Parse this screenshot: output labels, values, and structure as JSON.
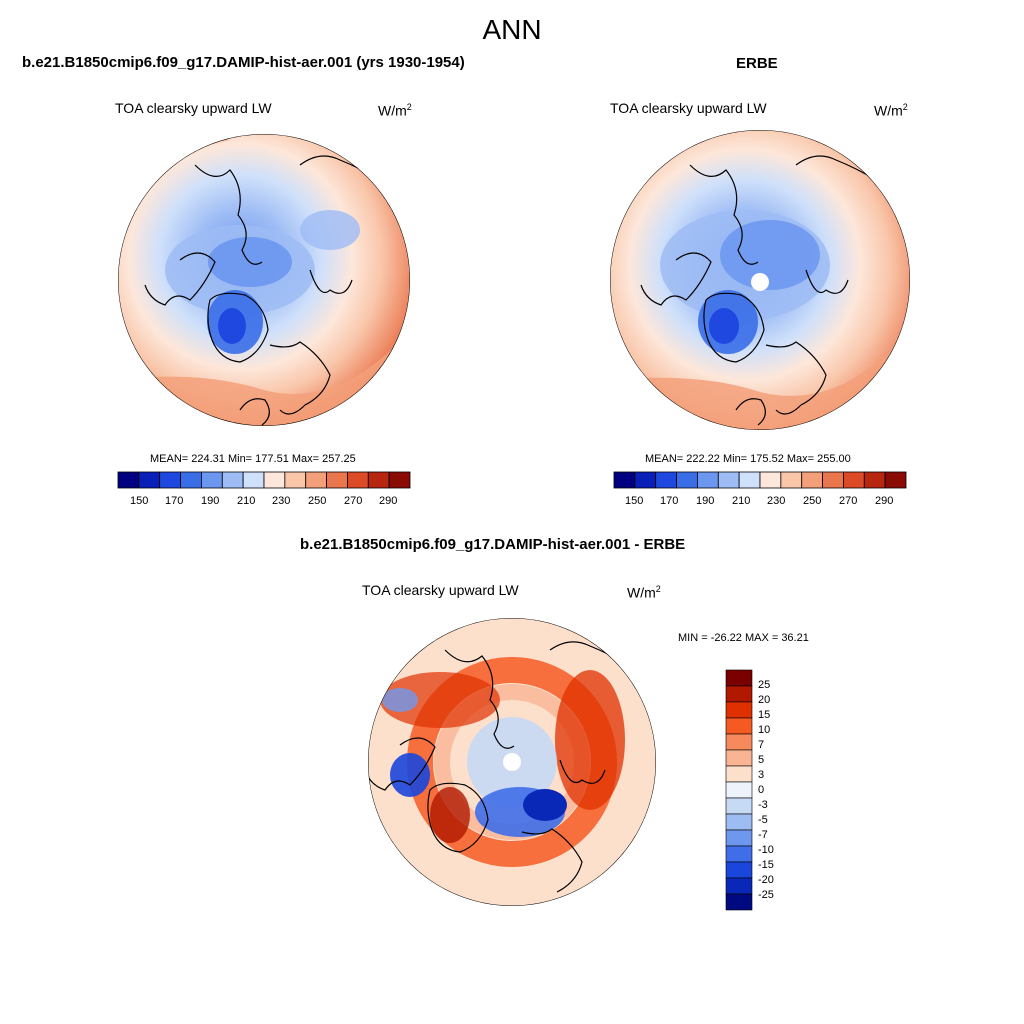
{
  "figure": {
    "title": "ANN",
    "panels": [
      {
        "name": "model",
        "case_title": "b.e21.B1850cmip6.f09_g17.DAMIP-hist-aer.001 (yrs 1930-1954)",
        "variable": "TOA clearsky upward LW",
        "units_base": "W/m",
        "units_exp": "2",
        "stats": "MEAN= 224.31  Min= 177.51  Max= 257.25",
        "colorbar_ticks": [
          "150",
          "170",
          "190",
          "210",
          "230",
          "250",
          "270",
          "290"
        ]
      },
      {
        "name": "obs",
        "case_title": "ERBE",
        "variable": "TOA clearsky upward LW",
        "units_base": "W/m",
        "units_exp": "2",
        "stats": "MEAN= 222.22  Min= 175.52  Max= 255.00",
        "colorbar_ticks": [
          "150",
          "170",
          "190",
          "210",
          "230",
          "250",
          "270",
          "290"
        ]
      },
      {
        "name": "diff",
        "case_title": "b.e21.B1850cmip6.f09_g17.DAMIP-hist-aer.001 - ERBE",
        "variable": "TOA clearsky upward LW",
        "units_base": "W/m",
        "units_exp": "2",
        "stats": "MIN = -26.22 MAX =  36.21",
        "colorbar_ticks": [
          "25",
          "20",
          "15",
          "10",
          "7",
          "5",
          "3",
          "0",
          "-3",
          "-5",
          "-7",
          "-10",
          "-15",
          "-20",
          "-25"
        ]
      }
    ],
    "abs_colors": [
      "#000080",
      "#0a1fb8",
      "#1e48e0",
      "#3a6ee8",
      "#6b97f0",
      "#9dbcf5",
      "#cfe0fa",
      "#fde7da",
      "#f9c6aa",
      "#f3a07a",
      "#ea764e",
      "#dc4a26",
      "#b8260f",
      "#8a0a04"
    ],
    "diff_colors": [
      "#7a0000",
      "#b01800",
      "#e03000",
      "#f45a22",
      "#f68a5c",
      "#f9b494",
      "#fde0cc",
      "#eef3fb",
      "#c6d9f5",
      "#9cbcf2",
      "#6e98ee",
      "#3f6ee8",
      "#1a46dc",
      "#0a28b8",
      "#000a80"
    ]
  }
}
